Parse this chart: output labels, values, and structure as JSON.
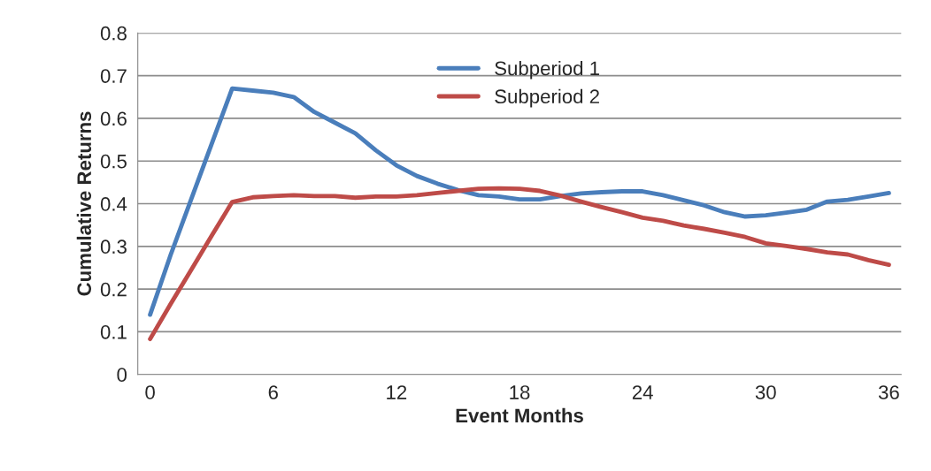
{
  "chart_data": {
    "type": "line",
    "xlabel": "Event Months",
    "ylabel": "Cumulative Returns",
    "x": [
      0,
      1,
      2,
      3,
      4,
      5,
      6,
      7,
      8,
      9,
      10,
      11,
      12,
      13,
      14,
      15,
      16,
      17,
      18,
      19,
      20,
      21,
      22,
      23,
      24,
      25,
      26,
      27,
      28,
      29,
      30,
      31,
      32,
      33,
      34,
      35,
      36
    ],
    "series": [
      {
        "name": "Subperiod 1",
        "color": "#4a7ebb",
        "values": [
          0.14,
          0.28,
          0.41,
          0.54,
          0.67,
          0.665,
          0.66,
          0.65,
          0.615,
          0.59,
          0.565,
          0.525,
          0.49,
          0.465,
          0.447,
          0.432,
          0.42,
          0.417,
          0.41,
          0.41,
          0.418,
          0.424,
          0.427,
          0.429,
          0.429,
          0.42,
          0.408,
          0.396,
          0.38,
          0.37,
          0.373,
          0.379,
          0.386,
          0.405,
          0.409,
          0.417,
          0.425
        ]
      },
      {
        "name": "Subperiod 2",
        "color": "#be4b48",
        "values": [
          0.083,
          0.165,
          0.245,
          0.325,
          0.404,
          0.415,
          0.418,
          0.42,
          0.418,
          0.418,
          0.414,
          0.417,
          0.417,
          0.42,
          0.425,
          0.43,
          0.435,
          0.436,
          0.435,
          0.43,
          0.419,
          0.405,
          0.392,
          0.38,
          0.367,
          0.36,
          0.349,
          0.341,
          0.332,
          0.322,
          0.307,
          0.301,
          0.294,
          0.286,
          0.281,
          0.268,
          0.257
        ]
      }
    ],
    "xlim": [
      -0.6,
      36.6
    ],
    "xticks": [
      0,
      6,
      12,
      18,
      24,
      30,
      36
    ],
    "ylim": [
      0,
      0.8
    ],
    "yticks": [
      0,
      0.1,
      0.2,
      0.3,
      0.4,
      0.5,
      0.6,
      0.7,
      0.8
    ],
    "grid": "y",
    "legend": "top center",
    "marker": "none",
    "line_style": "solid"
  }
}
